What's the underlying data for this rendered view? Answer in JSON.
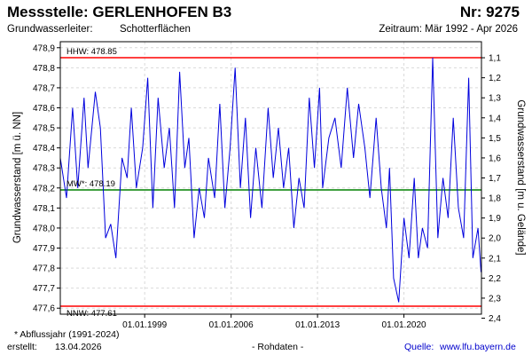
{
  "header": {
    "title": "Messstelle: GERLENHOFEN B3",
    "number": "Nr: 9275",
    "aquifer_label": "Grundwasserleiter:",
    "aquifer_value": "Schotterflächen",
    "period": "Zeitraum: Mär 1992 - Apr 2026"
  },
  "footer": {
    "note": "* Abflussjahr (1991-2024)",
    "created_label": "erstellt:",
    "created_date": "13.04.2026",
    "data_type": "- Rohdaten -",
    "source_label": "Quelle:",
    "source_url": "www.lfu.bayern.de"
  },
  "colors": {
    "series": "#0000dd",
    "hhw": "#ff0000",
    "nnw": "#ff0000",
    "mw": "#008000",
    "grid": "#d9d9d9"
  },
  "chart_data": {
    "type": "line",
    "ylabel": "Grundwasserstand [m ü. NN]",
    "ylabel_right": "Grundwasserstand [m u. Gelände]",
    "ylim": [
      477.57,
      478.93
    ],
    "yticks": [
      "477,6",
      "477,7",
      "477,8",
      "477,9",
      "478,0",
      "478,1",
      "478,2",
      "478,3",
      "478,4",
      "478,5",
      "478,6",
      "478,7",
      "478,8",
      "478,9"
    ],
    "right_ticks": [
      "1,1",
      "1,2",
      "1,3",
      "1,4",
      "1,5",
      "1,6",
      "1,7",
      "1,8",
      "1,9",
      "2,0",
      "2,1",
      "2,2",
      "2,3",
      "2,4"
    ],
    "ground_level": 479.95,
    "xlim": [
      "1992-03-01",
      "2026-04-13"
    ],
    "xticks": [
      "01.01.1999",
      "01.01.2006",
      "01.01.2013",
      "01.01.2020"
    ],
    "grid": true,
    "reference_lines": [
      {
        "name": "HHW",
        "label": "HHW: 478.85",
        "value": 478.85
      },
      {
        "name": "MW*",
        "label": "MW*: 478.19",
        "value": 478.19
      },
      {
        "name": "NNW",
        "label": "NNW: 477.61",
        "value": 477.61
      }
    ],
    "series": [
      {
        "x": [
          "1992-03-01",
          "1992-09-01",
          "1993-03-01",
          "1993-08-01",
          "1994-02-01",
          "1994-06-01",
          "1995-01-01",
          "1995-06-01",
          "1995-11-01",
          "1996-04-01",
          "1996-09-01",
          "1997-03-01",
          "1997-08-01",
          "1997-12-01",
          "1998-05-01",
          "1998-11-01",
          "1999-04-01",
          "1999-09-01",
          "2000-02-01",
          "2000-08-01",
          "2001-01-01",
          "2001-06-01",
          "2001-11-01",
          "2002-04-01",
          "2002-08-01",
          "2003-01-01",
          "2003-06-01",
          "2003-11-01",
          "2004-03-01",
          "2004-09-01",
          "2005-02-01",
          "2005-07-01",
          "2005-12-01",
          "2006-05-01",
          "2006-10-01",
          "2007-03-01",
          "2007-08-01",
          "2008-01-01",
          "2008-07-01",
          "2009-01-01",
          "2009-06-01",
          "2009-11-01",
          "2010-04-01",
          "2010-09-01",
          "2011-02-01",
          "2011-07-01",
          "2011-12-01",
          "2012-05-01",
          "2012-10-01",
          "2013-03-01",
          "2013-06-01",
          "2013-12-01",
          "2014-06-01",
          "2014-12-01",
          "2015-06-01",
          "2015-12-01",
          "2016-05-01",
          "2016-11-01",
          "2017-04-01",
          "2017-10-01",
          "2018-03-01",
          "2018-08-01",
          "2018-11-01",
          "2019-03-01",
          "2019-08-01",
          "2020-01-01",
          "2020-06-01",
          "2020-11-01",
          "2021-03-01",
          "2021-07-01",
          "2021-12-01",
          "2022-05-01",
          "2022-10-01",
          "2023-03-01",
          "2023-08-01",
          "2024-01-01",
          "2024-06-01",
          "2024-11-01",
          "2025-04-01",
          "2025-08-01",
          "2026-01-01",
          "2026-04-01"
        ],
        "values": [
          478.35,
          478.15,
          478.6,
          478.2,
          478.65,
          478.3,
          478.68,
          478.5,
          477.95,
          478.02,
          477.85,
          478.35,
          478.25,
          478.6,
          478.2,
          478.4,
          478.75,
          478.1,
          478.65,
          478.3,
          478.5,
          478.1,
          478.78,
          478.3,
          478.45,
          477.95,
          478.2,
          478.05,
          478.35,
          478.15,
          478.62,
          478.1,
          478.4,
          478.8,
          478.2,
          478.55,
          478.05,
          478.4,
          478.1,
          478.6,
          478.25,
          478.5,
          478.2,
          478.4,
          478.0,
          478.25,
          478.1,
          478.65,
          478.3,
          478.7,
          478.2,
          478.45,
          478.55,
          478.3,
          478.7,
          478.35,
          478.62,
          478.4,
          478.15,
          478.55,
          478.2,
          478.0,
          478.3,
          477.75,
          477.63,
          478.05,
          477.85,
          478.25,
          477.85,
          478.0,
          477.9,
          478.85,
          477.95,
          478.25,
          478.05,
          478.55,
          478.1,
          477.95,
          478.75,
          477.85,
          478.0,
          477.78
        ]
      }
    ]
  }
}
